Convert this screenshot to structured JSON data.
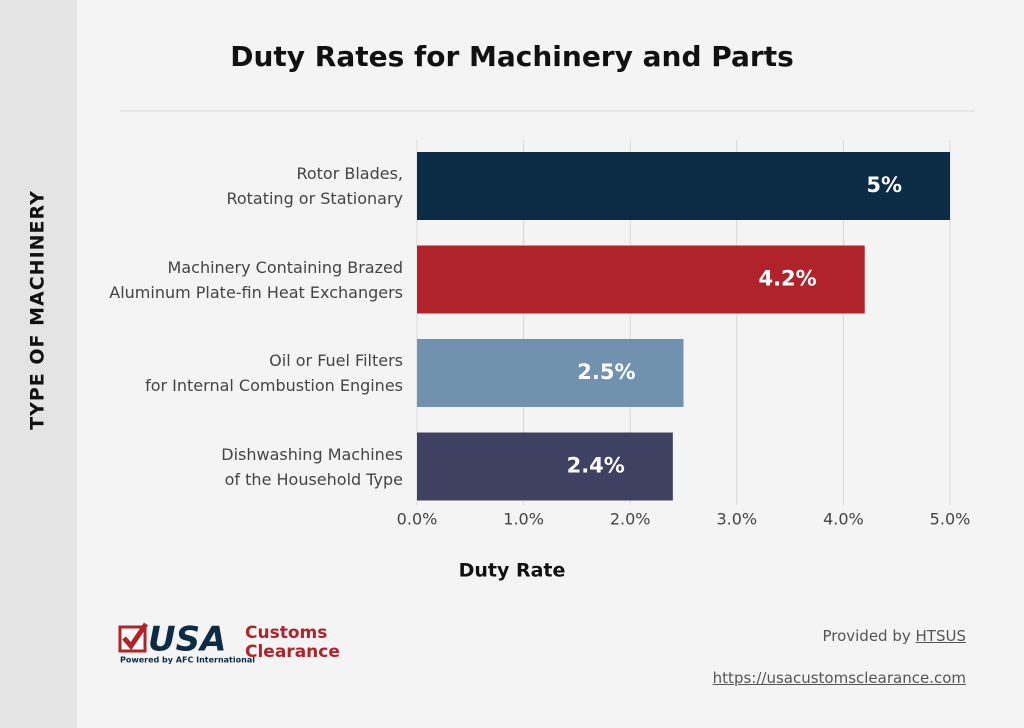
{
  "chart_data": {
    "type": "bar",
    "orientation": "horizontal",
    "title": "Duty Rates for Machinery and Parts",
    "xlabel": "Duty Rate",
    "ylabel": "TYPE OF MACHINERY",
    "categories": [
      "Rotor Blades,\nRotating or Stationary",
      "Machinery Containing Brazed\nAluminum Plate-fin Heat Exchangers",
      "Oil or Fuel Filters\nfor Internal Combustion Engines",
      "Dishwashing Machines\nof the Household Type"
    ],
    "values": [
      5,
      4.2,
      2.5,
      2.4
    ],
    "value_labels": [
      "5%",
      "4.2%",
      "2.5%",
      "2.4%"
    ],
    "colors": [
      "#0c2b45",
      "#b0232a",
      "#7092af",
      "#3f4163"
    ],
    "xlim": [
      0,
      5
    ],
    "xticks": [
      {
        "value": 0,
        "label": "0.0%"
      },
      {
        "value": 1,
        "label": "1.0%"
      },
      {
        "value": 2,
        "label": "2.0%"
      },
      {
        "value": 3,
        "label": "3.0%"
      },
      {
        "value": 4,
        "label": "4.0%"
      },
      {
        "value": 5,
        "label": "5.0%"
      }
    ],
    "grid": true
  },
  "footer": {
    "logo_mark": "USA",
    "logo_name": "Customs\nClearance",
    "logo_tagline": "Powered by AFC International",
    "provided_by": "Provided by",
    "source": "HTSUS",
    "url": "https://usacustomsclearance.com"
  }
}
